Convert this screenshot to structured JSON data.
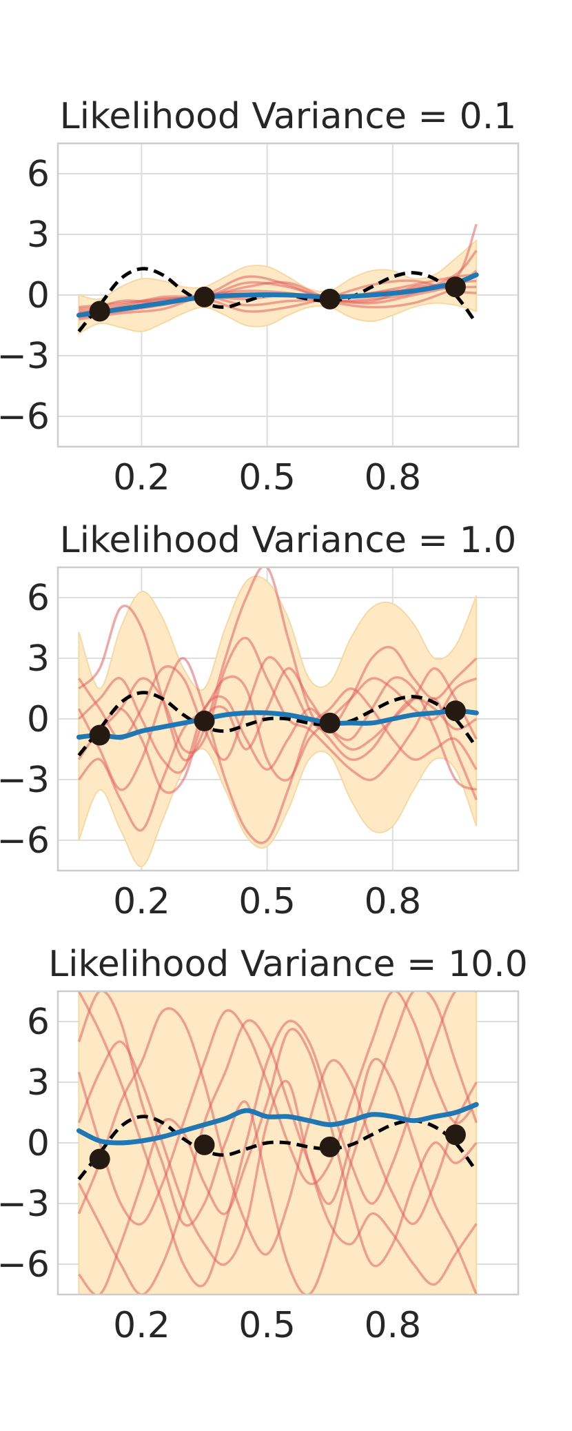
{
  "chart_data": [
    {
      "type": "line",
      "title": "Likelihood Variance = 0.1",
      "xlabel": "",
      "ylabel": "",
      "xlim": [
        0.0,
        1.1
      ],
      "ylim": [
        -7.5,
        7.5
      ],
      "grid": true,
      "xticks": [
        0.2,
        0.5,
        0.8
      ],
      "xtick_labels": [
        "0.2",
        "0.5",
        "0.8"
      ],
      "yticks": [
        6,
        3,
        0,
        -3,
        -6
      ],
      "ytick_labels": [
        "6",
        "3",
        "0",
        "−3",
        "−6"
      ],
      "colors": {
        "mean": "#1f77b4",
        "band": "#ffe9c4",
        "samples": "#e06060",
        "truth": "#000000",
        "points": "#241a12"
      },
      "observations": {
        "x": [
          0.1,
          0.35,
          0.65,
          0.95
        ],
        "y": [
          -0.8,
          -0.1,
          -0.2,
          0.4
        ]
      },
      "true_function": {
        "x": [
          0.05,
          0.1,
          0.15,
          0.2,
          0.25,
          0.3,
          0.35,
          0.4,
          0.45,
          0.5,
          0.55,
          0.6,
          0.65,
          0.7,
          0.75,
          0.8,
          0.85,
          0.9,
          0.95,
          1.0
        ],
        "y": [
          -1.8,
          -0.5,
          0.8,
          1.3,
          1.0,
          0.2,
          -0.4,
          -0.6,
          -0.3,
          0.0,
          0.0,
          -0.2,
          -0.3,
          -0.1,
          0.4,
          0.9,
          1.1,
          0.8,
          0.0,
          -1.4
        ]
      },
      "mean": {
        "x": [
          0.05,
          0.15,
          0.25,
          0.35,
          0.45,
          0.55,
          0.65,
          0.75,
          0.85,
          0.95,
          1.0
        ],
        "y": [
          -1.0,
          -0.7,
          -0.4,
          -0.1,
          0.0,
          0.0,
          -0.1,
          0.0,
          0.2,
          0.6,
          1.0
        ]
      },
      "band": {
        "x": [
          0.05,
          0.1,
          0.15,
          0.2,
          0.25,
          0.3,
          0.35,
          0.4,
          0.45,
          0.5,
          0.55,
          0.6,
          0.65,
          0.7,
          0.75,
          0.8,
          0.85,
          0.9,
          0.95,
          1.0
        ],
        "lower": [
          -1.9,
          -1.4,
          -1.6,
          -1.8,
          -1.4,
          -0.9,
          -0.6,
          -1.0,
          -1.5,
          -1.5,
          -1.0,
          -0.6,
          -0.6,
          -1.1,
          -1.3,
          -1.0,
          -0.6,
          -0.4,
          -0.5,
          -0.8
        ],
        "upper": [
          0.0,
          -0.2,
          0.4,
          0.8,
          0.7,
          0.4,
          0.4,
          0.9,
          1.4,
          1.4,
          0.9,
          0.3,
          0.2,
          0.8,
          1.2,
          1.2,
          0.8,
          1.0,
          1.8,
          2.7
        ]
      },
      "samples": {
        "x": [
          0.05,
          0.15,
          0.25,
          0.35,
          0.45,
          0.55,
          0.65,
          0.75,
          0.85,
          0.95,
          1.0
        ],
        "series": [
          [
            -0.9,
            -0.6,
            -0.2,
            -0.1,
            0.4,
            0.6,
            -0.2,
            -0.4,
            0.0,
            0.5,
            1.2
          ],
          [
            -1.2,
            -0.9,
            -0.7,
            -0.1,
            -0.5,
            -0.3,
            -0.2,
            0.1,
            0.5,
            0.9,
            1.0
          ],
          [
            -0.7,
            -0.5,
            -0.1,
            0.0,
            0.9,
            0.5,
            -0.3,
            -0.6,
            -0.4,
            0.3,
            0.4
          ],
          [
            -1.0,
            -0.3,
            -0.4,
            -0.2,
            -0.8,
            -0.6,
            -0.1,
            0.5,
            0.7,
            0.2,
            0.1
          ],
          [
            -0.8,
            -0.7,
            -0.3,
            0.0,
            0.2,
            0.1,
            -0.2,
            0.1,
            0.3,
            0.6,
            0.7
          ],
          [
            -1.1,
            -0.8,
            -0.5,
            -0.1,
            -0.2,
            0.0,
            -0.3,
            -0.2,
            0.1,
            1.0,
            2.2
          ],
          [
            -0.6,
            -0.4,
            -0.2,
            -0.1,
            0.6,
            0.4,
            -0.2,
            -0.3,
            0.4,
            0.8,
            3.5
          ]
        ]
      }
    },
    {
      "type": "line",
      "title": "Likelihood Variance = 1.0",
      "xlabel": "",
      "ylabel": "",
      "xlim": [
        0.0,
        1.1
      ],
      "ylim": [
        -7.5,
        7.5
      ],
      "grid": true,
      "xticks": [
        0.2,
        0.5,
        0.8
      ],
      "xtick_labels": [
        "0.2",
        "0.5",
        "0.8"
      ],
      "yticks": [
        6,
        3,
        0,
        -3,
        -6
      ],
      "ytick_labels": [
        "6",
        "3",
        "0",
        "−3",
        "−6"
      ],
      "colors": {
        "mean": "#1f77b4",
        "band": "#ffe9c4",
        "samples": "#e06060",
        "truth": "#000000",
        "points": "#241a12"
      },
      "observations": {
        "x": [
          0.1,
          0.35,
          0.65,
          0.95
        ],
        "y": [
          -0.8,
          -0.1,
          -0.2,
          0.4
        ]
      },
      "true_function": {
        "x": [
          0.05,
          0.1,
          0.15,
          0.2,
          0.25,
          0.3,
          0.35,
          0.4,
          0.45,
          0.5,
          0.55,
          0.6,
          0.65,
          0.7,
          0.75,
          0.8,
          0.85,
          0.9,
          0.95,
          1.0
        ],
        "y": [
          -1.8,
          -0.5,
          0.8,
          1.3,
          1.0,
          0.2,
          -0.4,
          -0.6,
          -0.3,
          0.0,
          0.0,
          -0.2,
          -0.3,
          -0.1,
          0.4,
          0.9,
          1.1,
          0.8,
          0.0,
          -1.4
        ]
      },
      "mean": {
        "x": [
          0.05,
          0.1,
          0.15,
          0.2,
          0.25,
          0.3,
          0.35,
          0.4,
          0.45,
          0.5,
          0.55,
          0.6,
          0.65,
          0.7,
          0.75,
          0.8,
          0.85,
          0.9,
          0.95,
          1.0
        ],
        "y": [
          -0.9,
          -0.8,
          -0.9,
          -0.6,
          -0.4,
          -0.2,
          0.0,
          0.2,
          0.3,
          0.3,
          0.2,
          0.0,
          -0.2,
          -0.2,
          -0.2,
          0.0,
          0.2,
          0.3,
          0.4,
          0.3
        ]
      },
      "band": {
        "x": [
          0.05,
          0.1,
          0.15,
          0.2,
          0.25,
          0.3,
          0.35,
          0.4,
          0.45,
          0.5,
          0.55,
          0.6,
          0.65,
          0.7,
          0.75,
          0.8,
          0.85,
          0.9,
          0.95,
          1.0
        ],
        "lower": [
          -6.0,
          -3.5,
          -5.5,
          -7.3,
          -5.0,
          -2.5,
          -1.5,
          -3.5,
          -5.8,
          -6.3,
          -4.5,
          -2.0,
          -1.8,
          -4.0,
          -5.5,
          -5.3,
          -3.5,
          -2.0,
          -2.5,
          -5.3
        ],
        "upper": [
          4.3,
          1.5,
          4.5,
          6.3,
          5.0,
          2.5,
          1.5,
          4.5,
          6.8,
          6.8,
          5.0,
          2.0,
          1.8,
          4.0,
          5.5,
          5.7,
          4.7,
          3.0,
          3.6,
          6.1
        ]
      },
      "samples": {
        "x": [
          0.05,
          0.1,
          0.15,
          0.2,
          0.25,
          0.3,
          0.35,
          0.4,
          0.45,
          0.5,
          0.55,
          0.6,
          0.65,
          0.7,
          0.75,
          0.8,
          0.85,
          0.9,
          0.95,
          1.0
        ],
        "series": [
          [
            1.5,
            2.5,
            5.5,
            4.5,
            1.0,
            -2.0,
            -0.5,
            3.0,
            6.0,
            7.5,
            4.0,
            0.5,
            -1.0,
            -2.0,
            -1.5,
            0.0,
            1.0,
            0.5,
            -0.5,
            0.0
          ],
          [
            -3.0,
            -2.0,
            -4.0,
            -5.5,
            -3.0,
            -0.5,
            0.5,
            2.0,
            1.5,
            -2.0,
            -3.0,
            -1.0,
            0.0,
            1.0,
            2.0,
            1.5,
            0.5,
            0.0,
            1.5,
            2.0
          ],
          [
            0.5,
            -1.5,
            -3.5,
            -2.0,
            1.0,
            3.0,
            0.5,
            -3.0,
            -5.5,
            -6.0,
            -3.5,
            -0.5,
            0.5,
            1.5,
            0.5,
            -1.0,
            -2.0,
            -1.5,
            -1.0,
            -2.5
          ],
          [
            2.0,
            0.5,
            -1.0,
            0.5,
            2.5,
            2.0,
            -0.5,
            -2.0,
            0.5,
            3.0,
            2.0,
            0.0,
            -0.5,
            1.0,
            3.0,
            3.5,
            2.0,
            1.0,
            2.0,
            3.0
          ],
          [
            -1.0,
            -0.5,
            0.5,
            2.0,
            1.0,
            -1.5,
            -1.0,
            2.5,
            4.0,
            2.0,
            0.0,
            -0.5,
            -1.5,
            -2.5,
            -3.0,
            -2.0,
            -0.5,
            1.0,
            -1.5,
            -4.0
          ],
          [
            0.0,
            1.0,
            2.0,
            0.0,
            -2.0,
            -2.5,
            0.5,
            1.0,
            -1.0,
            -2.5,
            -1.0,
            0.5,
            -0.5,
            -1.0,
            0.5,
            2.0,
            1.5,
            -0.5,
            -3.0,
            -3.5
          ],
          [
            -2.0,
            -0.5,
            0.5,
            -1.0,
            -3.5,
            -3.0,
            0.0,
            0.5,
            -1.5,
            0.5,
            2.5,
            1.0,
            -0.5,
            -1.5,
            -1.0,
            0.0,
            1.0,
            2.5,
            1.0,
            -1.0
          ]
        ]
      }
    },
    {
      "type": "line",
      "title": "Likelihood Variance = 10.0",
      "xlabel": "",
      "ylabel": "",
      "xlim": [
        0.0,
        1.1
      ],
      "ylim": [
        -7.5,
        7.5
      ],
      "grid": true,
      "xticks": [
        0.2,
        0.5,
        0.8
      ],
      "xtick_labels": [
        "0.2",
        "0.5",
        "0.8"
      ],
      "yticks": [
        6,
        3,
        0,
        -3,
        -6
      ],
      "ytick_labels": [
        "6",
        "3",
        "0",
        "−3",
        "−6"
      ],
      "colors": {
        "mean": "#1f77b4",
        "band": "#ffe9c4",
        "samples": "#e06060",
        "truth": "#000000",
        "points": "#241a12"
      },
      "observations": {
        "x": [
          0.1,
          0.35,
          0.65,
          0.95
        ],
        "y": [
          -0.8,
          -0.1,
          -0.2,
          0.4
        ]
      },
      "true_function": {
        "x": [
          0.05,
          0.1,
          0.15,
          0.2,
          0.25,
          0.3,
          0.35,
          0.4,
          0.45,
          0.5,
          0.55,
          0.6,
          0.65,
          0.7,
          0.75,
          0.8,
          0.85,
          0.9,
          0.95,
          1.0
        ],
        "y": [
          -1.8,
          -0.5,
          0.8,
          1.3,
          1.0,
          0.2,
          -0.4,
          -0.6,
          -0.3,
          0.0,
          0.0,
          -0.2,
          -0.3,
          -0.1,
          0.4,
          0.9,
          1.1,
          0.8,
          0.0,
          -1.4
        ]
      },
      "mean": {
        "x": [
          0.05,
          0.1,
          0.15,
          0.2,
          0.25,
          0.3,
          0.35,
          0.4,
          0.45,
          0.5,
          0.55,
          0.6,
          0.65,
          0.7,
          0.75,
          0.8,
          0.85,
          0.9,
          0.95,
          1.0
        ],
        "y": [
          0.6,
          0.1,
          0.0,
          0.1,
          0.3,
          0.6,
          0.9,
          1.2,
          1.6,
          1.3,
          1.3,
          1.1,
          0.9,
          1.1,
          1.4,
          1.3,
          1.1,
          1.3,
          1.5,
          1.9
        ]
      },
      "band": {
        "x": [
          0.05,
          1.0
        ],
        "lower": [
          -7.5,
          -7.5
        ],
        "upper": [
          7.5,
          7.5
        ]
      },
      "samples": {
        "x": [
          0.05,
          0.1,
          0.15,
          0.2,
          0.25,
          0.3,
          0.35,
          0.4,
          0.45,
          0.5,
          0.55,
          0.6,
          0.65,
          0.7,
          0.75,
          0.8,
          0.85,
          0.9,
          0.95,
          1.0
        ],
        "series": [
          [
            3.5,
            0.0,
            -3.0,
            -4.0,
            -2.0,
            1.0,
            4.0,
            6.5,
            5.5,
            3.0,
            0.0,
            -2.0,
            -1.0,
            2.0,
            5.0,
            7.5,
            6.0,
            3.0,
            1.0,
            2.0
          ],
          [
            -3.5,
            -1.0,
            2.0,
            4.0,
            6.5,
            6.0,
            3.0,
            -1.0,
            -4.0,
            -5.5,
            -3.0,
            1.0,
            4.0,
            3.0,
            0.0,
            -2.5,
            -4.0,
            -2.0,
            1.0,
            3.0
          ],
          [
            7.5,
            5.5,
            3.0,
            0.0,
            -3.0,
            -6.0,
            -7.0,
            -4.0,
            0.0,
            4.0,
            6.0,
            5.0,
            2.0,
            -1.0,
            -3.0,
            -1.0,
            2.0,
            5.0,
            7.5,
            7.5
          ],
          [
            -6.5,
            -7.5,
            -5.0,
            -2.0,
            1.0,
            0.5,
            -2.0,
            -3.5,
            -1.0,
            2.0,
            5.5,
            4.5,
            1.0,
            -3.0,
            -6.0,
            -5.0,
            -2.0,
            0.0,
            -1.0,
            0.0
          ],
          [
            1.0,
            3.5,
            5.0,
            3.0,
            0.0,
            -3.0,
            -5.0,
            -6.0,
            -4.0,
            1.0,
            3.0,
            -1.0,
            -4.0,
            -5.0,
            -3.5,
            -4.5,
            -6.0,
            -7.0,
            -5.5,
            -4.0
          ],
          [
            -2.0,
            -4.0,
            -6.0,
            -7.5,
            -6.0,
            -3.0,
            1.0,
            3.5,
            6.0,
            5.0,
            2.0,
            -1.0,
            -3.0,
            0.0,
            4.0,
            3.0,
            0.0,
            -3.0,
            -5.0,
            -7.5
          ],
          [
            5.0,
            7.5,
            6.0,
            2.0,
            -1.0,
            -4.0,
            -3.0,
            0.0,
            2.0,
            -2.0,
            -6.0,
            -7.5,
            -5.0,
            -1.0,
            2.0,
            5.0,
            7.5,
            7.0,
            4.0,
            1.0
          ]
        ]
      }
    }
  ]
}
